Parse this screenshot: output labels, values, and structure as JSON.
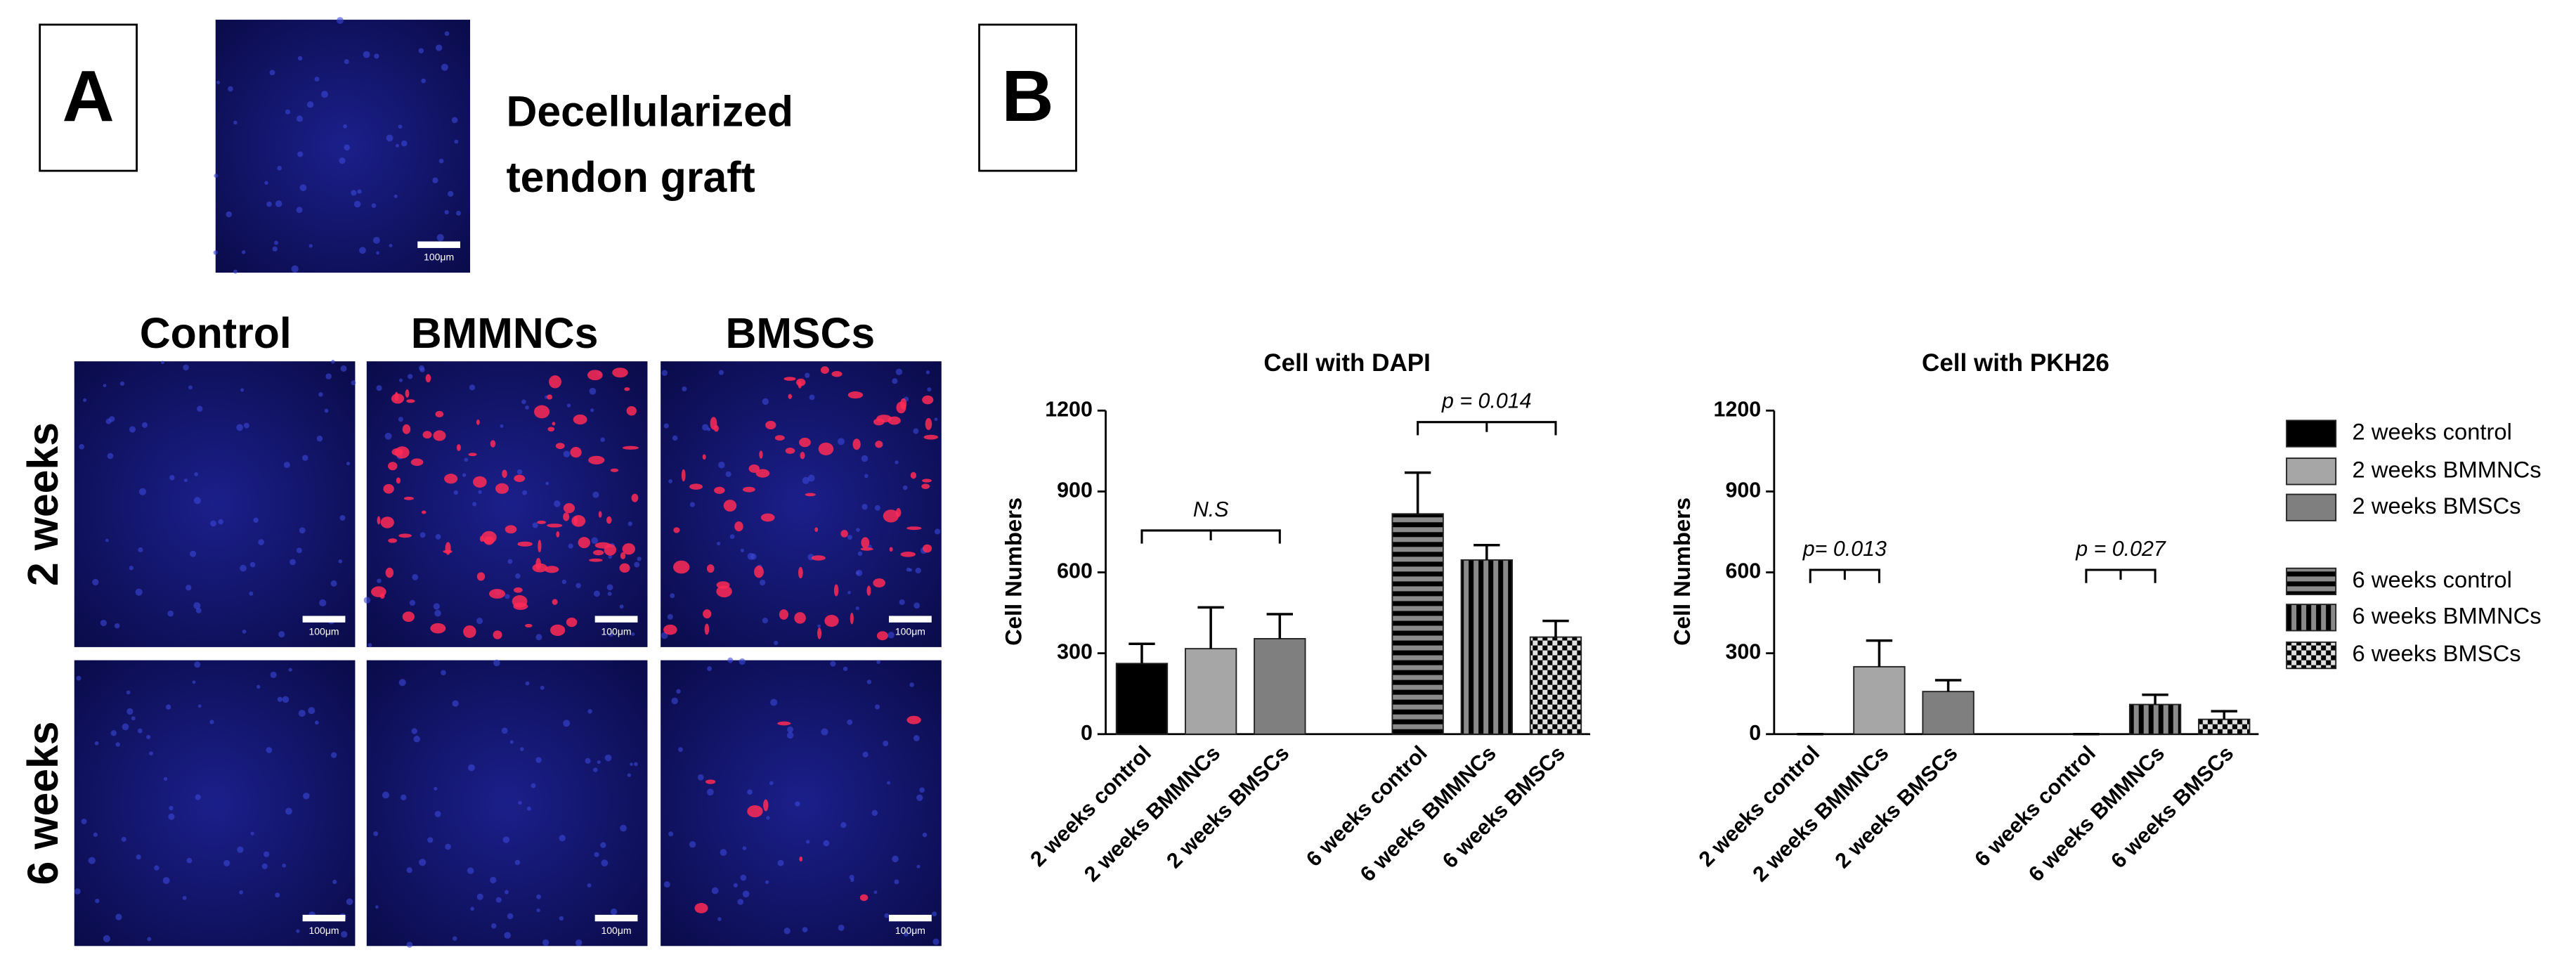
{
  "panel_a": {
    "label": "A",
    "caption": [
      "Decellularized",
      "tendon graft"
    ],
    "columns": [
      "Control",
      "BMMNCs",
      "BMSCs"
    ],
    "rows": [
      "2 weeks",
      "6 weeks"
    ],
    "scale_bar": "100μm"
  },
  "panel_b": {
    "label": "B"
  },
  "chart_data": [
    {
      "type": "bar",
      "title": "Cell with DAPI",
      "y_label": "Cell Numbers",
      "categories": [
        "2 weeks control",
        "2 weeks BMMNCs",
        "2 weeks BMSCs",
        "6 weeks control",
        "6 weeks BMMNCs",
        "6 weeks BMSCs"
      ],
      "values": [
        262,
        317,
        354,
        817,
        646,
        360
      ],
      "errors": [
        73,
        153,
        91,
        153,
        55,
        60
      ],
      "colors": [
        "#000000",
        "#a6a6a6",
        "#7f7f7f",
        "#000000",
        "#000000",
        "#000000"
      ],
      "patterns": [
        "solid",
        "solid",
        "solid",
        "horizontal-stripes",
        "vertical-stripes",
        "checker"
      ],
      "ylim": [
        0,
        1200
      ],
      "yticks": [
        0,
        300,
        600,
        900,
        1200
      ],
      "annotations": [
        "N.S",
        "p = 0.014"
      ]
    },
    {
      "type": "bar",
      "title": "Cell with PKH26",
      "y_label": "Cell Numbers",
      "categories": [
        "2 weeks control",
        "2 weeks BMMNCs",
        "2 weeks BMSCs",
        "6 weeks control",
        "6 weeks BMMNCs",
        "6 weeks BMSCs"
      ],
      "values": [
        0,
        250,
        158,
        0,
        110,
        55
      ],
      "errors": [
        0,
        97,
        42,
        0,
        36,
        30
      ],
      "colors": [
        "#000000",
        "#a6a6a6",
        "#7f7f7f",
        "#000000",
        "#000000",
        "#000000"
      ],
      "patterns": [
        "solid",
        "solid",
        "solid",
        "horizontal-stripes",
        "vertical-stripes",
        "checker"
      ],
      "ylim": [
        0,
        1200
      ],
      "yticks": [
        0,
        300,
        600,
        900,
        1200
      ],
      "annotations": [
        "p= 0.013",
        "p = 0.027"
      ]
    }
  ]
}
